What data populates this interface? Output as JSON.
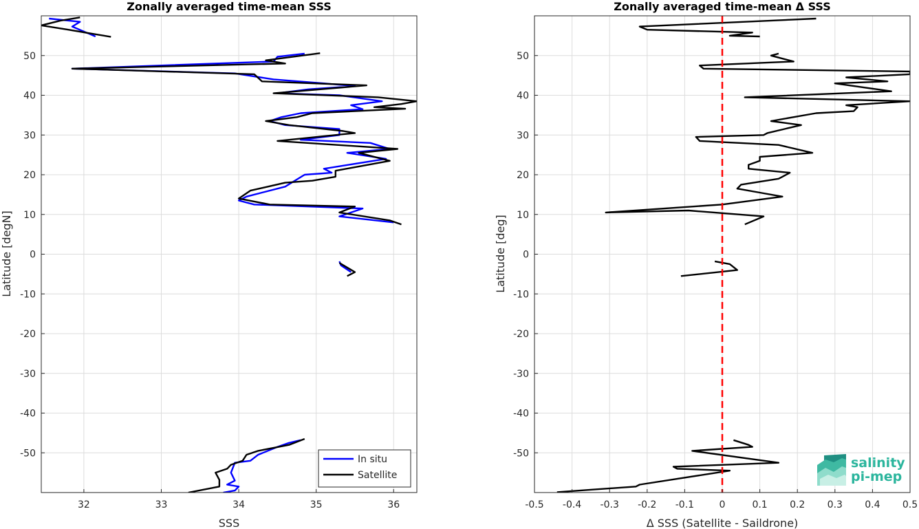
{
  "chart_data": [
    {
      "type": "line",
      "title": "Zonally averaged time-mean SSS",
      "xlabel": "SSS",
      "ylabel": "Latitude [degN]",
      "xlim": [
        31.45,
        36.3
      ],
      "ylim": [
        -60,
        60
      ],
      "xticks": [
        32,
        33,
        34,
        35,
        36
      ],
      "yticks": [
        50,
        40,
        30,
        20,
        10,
        0,
        -10,
        -20,
        -30,
        -40,
        -50
      ],
      "grid": true,
      "legend": {
        "placement": "bottom-right",
        "entries": [
          "In situ",
          "Satellite"
        ]
      },
      "colors": {
        "In situ": "#0000ff",
        "Satellite": "#000000"
      },
      "series": [
        {
          "name": "In situ",
          "segments": [
            [
              [
                31.55,
                59.3
              ],
              [
                31.95,
                58.5
              ],
              [
                31.85,
                57.3
              ],
              [
                32.15,
                54.8
              ]
            ],
            [
              [
                34.85,
                50.5
              ],
              [
                34.5,
                49.7
              ],
              [
                34.45,
                48.5
              ],
              [
                31.85,
                46.7
              ],
              [
                33.95,
                45.5
              ],
              [
                34.45,
                44
              ],
              [
                35.1,
                43
              ],
              [
                35.5,
                42.3
              ],
              [
                34.9,
                41.5
              ],
              [
                34.5,
                40.5
              ],
              [
                35.3,
                40
              ],
              [
                35.85,
                38.5
              ],
              [
                35.45,
                37.5
              ],
              [
                35.6,
                36.5
              ],
              [
                34.8,
                35.5
              ],
              [
                34.55,
                34.5
              ],
              [
                34.4,
                33.5
              ],
              [
                34.6,
                32.5
              ],
              [
                35.3,
                31.5
              ],
              [
                35.3,
                30
              ],
              [
                34.8,
                28.8
              ],
              [
                35.7,
                28
              ],
              [
                35.95,
                26.5
              ],
              [
                35.4,
                25.5
              ],
              [
                35.9,
                24
              ],
              [
                35.1,
                21.5
              ],
              [
                35.2,
                20.5
              ],
              [
                34.85,
                20
              ],
              [
                34.6,
                17
              ],
              [
                34.3,
                15.5
              ],
              [
                34.1,
                14.5
              ],
              [
                34,
                13.5
              ],
              [
                34.2,
                12.5
              ],
              [
                35.6,
                11.5
              ],
              [
                35.3,
                9.5
              ],
              [
                36,
                8
              ]
            ],
            [
              [
                35.3,
                -1.8
              ],
              [
                35.32,
                -2.8
              ],
              [
                35.45,
                -4.5
              ]
            ],
            [
              [
                34.8,
                -46.8
              ],
              [
                34.65,
                -47.5
              ],
              [
                34.5,
                -48.5
              ],
              [
                34.25,
                -50.5
              ],
              [
                34.15,
                -52
              ],
              [
                33.95,
                -52.5
              ],
              [
                33.9,
                -55
              ],
              [
                33.95,
                -57
              ],
              [
                33.85,
                -58
              ],
              [
                34,
                -58.5
              ],
              [
                33.95,
                -59.5
              ],
              [
                33.8,
                -60
              ]
            ]
          ]
        },
        {
          "name": "Satellite",
          "segments": [
            [
              [
                31.95,
                59.6
              ],
              [
                31.7,
                58.8
              ],
              [
                31.45,
                57.6
              ],
              [
                31.8,
                56.5
              ],
              [
                32.35,
                54.7
              ]
            ],
            [
              [
                35.05,
                50.6
              ],
              [
                34.35,
                48.8
              ],
              [
                34.6,
                48
              ],
              [
                31.85,
                46.7
              ],
              [
                34.2,
                45.3
              ],
              [
                34.3,
                43.5
              ],
              [
                35.65,
                42.5
              ],
              [
                34.45,
                40.5
              ],
              [
                35.8,
                39.5
              ],
              [
                36.3,
                38.5
              ],
              [
                36.1,
                37.8
              ],
              [
                35.75,
                37
              ],
              [
                36.15,
                36.6
              ],
              [
                34.95,
                35.5
              ],
              [
                34.75,
                34.5
              ],
              [
                34.35,
                33.5
              ],
              [
                34.65,
                32.5
              ],
              [
                35.35,
                31
              ],
              [
                35.5,
                30.5
              ],
              [
                34.5,
                28.5
              ],
              [
                36.05,
                26.5
              ],
              [
                35.55,
                25.5
              ],
              [
                35.95,
                23.5
              ],
              [
                35.25,
                21
              ],
              [
                35.25,
                19.5
              ],
              [
                34.95,
                18.5
              ],
              [
                34.6,
                18
              ],
              [
                34.15,
                16
              ],
              [
                34,
                14
              ],
              [
                34.4,
                12.5
              ],
              [
                35.5,
                12
              ],
              [
                35.3,
                10.5
              ],
              [
                35.95,
                8.5
              ],
              [
                36.1,
                7.5
              ]
            ],
            [
              [
                35.3,
                -2.2
              ],
              [
                35.5,
                -4.5
              ],
              [
                35.4,
                -5.5
              ]
            ],
            [
              [
                34.85,
                -46.5
              ],
              [
                34.65,
                -48
              ],
              [
                34.25,
                -49.5
              ],
              [
                34.1,
                -50.5
              ],
              [
                34.05,
                -52
              ],
              [
                33.9,
                -53
              ],
              [
                33.85,
                -54
              ],
              [
                33.7,
                -55
              ],
              [
                33.75,
                -56.8
              ],
              [
                33.75,
                -58.5
              ],
              [
                33.35,
                -60
              ]
            ]
          ]
        }
      ]
    },
    {
      "type": "line",
      "title": "Zonally averaged time-mean Δ SSS",
      "xlabel": "Δ SSS (Satellite - Saildrone)",
      "ylabel": "Latitude [deg]",
      "xlim": [
        -0.5,
        0.5
      ],
      "ylim": [
        -60,
        60
      ],
      "xticks": [
        -0.5,
        -0.4,
        -0.3,
        -0.2,
        -0.1,
        0,
        0.1,
        0.2,
        0.3,
        0.4,
        0.5
      ],
      "yticks": [
        50,
        40,
        30,
        20,
        10,
        0,
        -10,
        -20,
        -30,
        -40,
        -50
      ],
      "grid": true,
      "reference_line": {
        "x": 0,
        "color": "#ff0000",
        "style": "dashed"
      },
      "colors": {
        "Saildrone difference": "#000000"
      },
      "series": [
        {
          "segments": [
            [
              [
                0.25,
                59.3
              ],
              [
                -0.22,
                57.3
              ],
              [
                -0.2,
                56.5
              ],
              [
                0.08,
                55.8
              ],
              [
                0.02,
                55
              ],
              [
                0.1,
                54.8
              ]
            ],
            [
              [
                0.15,
                50.5
              ],
              [
                0.13,
                50
              ],
              [
                0.19,
                48.5
              ],
              [
                -0.06,
                47.5
              ],
              [
                -0.05,
                46.7
              ],
              [
                0.5,
                46
              ],
              [
                0.5,
                45.3
              ],
              [
                0.33,
                44.5
              ],
              [
                0.44,
                43.5
              ],
              [
                0.3,
                43
              ],
              [
                0.45,
                41
              ],
              [
                0.06,
                39.5
              ],
              [
                0.5,
                38.5
              ],
              [
                0.33,
                37.5
              ],
              [
                0.36,
                37
              ],
              [
                0.35,
                36
              ],
              [
                0.25,
                35.5
              ],
              [
                0.13,
                33.5
              ],
              [
                0.21,
                32.5
              ],
              [
                0.12,
                30.5
              ],
              [
                0.11,
                30
              ],
              [
                -0.07,
                29.5
              ],
              [
                -0.06,
                28.5
              ],
              [
                0.15,
                27.5
              ],
              [
                0.24,
                25.5
              ],
              [
                0.1,
                24.5
              ],
              [
                0.1,
                23.5
              ],
              [
                0.07,
                22.5
              ],
              [
                0.07,
                21.5
              ],
              [
                0.18,
                20.5
              ],
              [
                0.16,
                19.5
              ],
              [
                0.15,
                19
              ],
              [
                0.05,
                17.5
              ],
              [
                0.04,
                16.5
              ],
              [
                0.1,
                15.5
              ],
              [
                0.16,
                14.5
              ],
              [
                0.0,
                12.5
              ],
              [
                -0.31,
                10.5
              ],
              [
                -0.09,
                11
              ],
              [
                0.11,
                9.5
              ],
              [
                0.06,
                7.5
              ]
            ],
            [
              [
                -0.02,
                -1.8
              ],
              [
                0.02,
                -2.5
              ],
              [
                0.04,
                -4
              ],
              [
                -0.11,
                -5.5
              ]
            ],
            [
              [
                0.03,
                -46.8
              ],
              [
                0.07,
                -48
              ],
              [
                0.08,
                -48.5
              ],
              [
                -0.08,
                -49.5
              ],
              [
                0.15,
                -52.5
              ],
              [
                -0.13,
                -53.5
              ],
              [
                -0.12,
                -54
              ],
              [
                0.02,
                -54.5
              ],
              [
                -0.22,
                -58
              ],
              [
                -0.23,
                -58.5
              ],
              [
                -0.44,
                -59.9
              ]
            ]
          ]
        }
      ]
    }
  ],
  "logo": {
    "line1": "salinity",
    "line2": "pi-mep"
  }
}
